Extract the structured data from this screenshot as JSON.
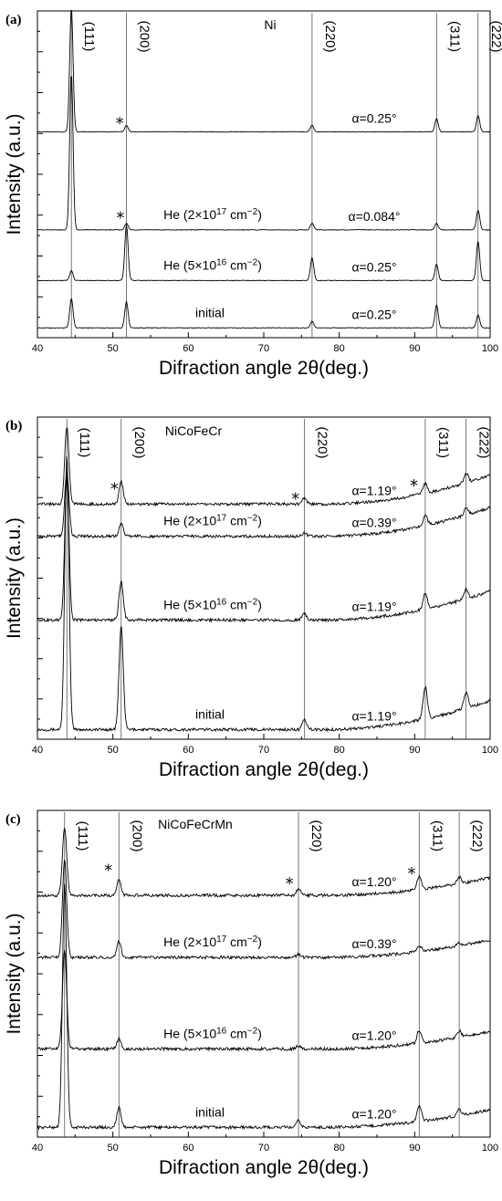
{
  "chart_data": [
    {
      "type": "line",
      "panel_label": "(a)",
      "material": "Ni",
      "xlabel": "Difraction angle 2θ(deg.)",
      "ylabel": "Intensity (a.u.)",
      "xlim": [
        40,
        100
      ],
      "x_ticks": [
        "40",
        "50",
        "60",
        "70",
        "80",
        "90",
        "100"
      ],
      "peak_labels": [
        {
          "text": "(111)",
          "x": 44.5
        },
        {
          "text": "(200)",
          "x": 51.8
        },
        {
          "text": "(220)",
          "x": 76.4
        },
        {
          "text": "(311)",
          "x": 92.9
        },
        {
          "text": "(222)",
          "x": 98.4
        }
      ],
      "series": [
        {
          "label": "initial",
          "angle": "α=0.25°",
          "baseline": 0.03,
          "peaks": [
            [
              44.5,
              0.09
            ],
            [
              51.8,
              0.08
            ],
            [
              76.4,
              0.02
            ],
            [
              92.9,
              0.07
            ],
            [
              98.4,
              0.04
            ]
          ]
        },
        {
          "label": "He (5×10<sup>16</sup> cm<sup>−2</sup>)",
          "angle": "α=0.25°",
          "baseline": 0.175,
          "peaks": [
            [
              44.5,
              0.03
            ],
            [
              51.8,
              0.17
            ],
            [
              76.4,
              0.07
            ],
            [
              92.9,
              0.05
            ],
            [
              98.4,
              0.12
            ]
          ]
        },
        {
          "label": "He (2×10<sup>17</sup> cm<sup>−2</sup>)",
          "angle": "α=0.084°",
          "baseline": 0.33,
          "peaks": [
            [
              44.5,
              0.48
            ],
            [
              51.8,
              0.02
            ],
            [
              76.4,
              0.02
            ],
            [
              92.9,
              0.02
            ],
            [
              98.4,
              0.06
            ]
          ]
        },
        {
          "label": "",
          "angle": "α=0.25°",
          "baseline": 0.63,
          "peaks": [
            [
              44.5,
              0.38
            ],
            [
              51.8,
              0.02
            ],
            [
              76.4,
              0.02
            ],
            [
              92.9,
              0.04
            ],
            [
              98.4,
              0.05
            ]
          ]
        }
      ],
      "vlines": [
        44.5,
        51.8,
        76.4,
        92.9,
        98.4
      ],
      "stars": [
        {
          "x": 50.9,
          "y": 0.64
        },
        {
          "x": 51.0,
          "y": 0.35
        }
      ]
    },
    {
      "type": "line",
      "panel_label": "(b)",
      "material": "NiCoFeCr",
      "xlabel": "Difraction angle 2θ(deg.)",
      "ylabel": "Intensity (a.u.)",
      "xlim": [
        40,
        100
      ],
      "x_ticks": [
        "40",
        "50",
        "60",
        "70",
        "80",
        "90",
        "100"
      ],
      "peak_labels": [
        {
          "text": "(111)",
          "x": 43.9
        },
        {
          "text": "(200)",
          "x": 51.1
        },
        {
          "text": "(220)",
          "x": 75.4
        },
        {
          "text": "(311)",
          "x": 91.4
        },
        {
          "text": "(222)",
          "x": 96.8
        }
      ],
      "series": [
        {
          "label": "initial",
          "angle": "α=1.19°",
          "baseline": 0.03,
          "peaks": [
            [
              43.9,
              0.85
            ],
            [
              51.1,
              0.32
            ],
            [
              75.4,
              0.03
            ],
            [
              91.4,
              0.1
            ],
            [
              96.8,
              0.05
            ]
          ]
        },
        {
          "label": "He (5×10<sup>16</sup> cm<sup>−2</sup>)",
          "angle": "α=1.19°",
          "baseline": 0.37,
          "peaks": [
            [
              43.9,
              0.45
            ],
            [
              51.1,
              0.12
            ],
            [
              75.4,
              0.02
            ],
            [
              91.4,
              0.05
            ],
            [
              96.8,
              0.03
            ]
          ]
        },
        {
          "label": "He (2×10<sup>17</sup> cm<sup>−2</sup>)",
          "angle": "α=0.39°",
          "baseline": 0.63,
          "peaks": [
            [
              43.9,
              0.2
            ],
            [
              51.1,
              0.04
            ],
            [
              75.4,
              0.01
            ],
            [
              91.4,
              0.03
            ],
            [
              96.8,
              0.02
            ]
          ]
        },
        {
          "label": "",
          "angle": "α=1.19°",
          "baseline": 0.73,
          "peaks": [
            [
              43.9,
              0.24
            ],
            [
              51.1,
              0.07
            ],
            [
              75.4,
              0.02
            ],
            [
              91.4,
              0.03
            ],
            [
              96.8,
              0.03
            ]
          ]
        }
      ],
      "vlines": [
        43.9,
        51.1,
        75.4,
        91.4,
        96.8
      ],
      "stars": [
        {
          "x": 50.2,
          "y": 0.76
        },
        {
          "x": 74.2,
          "y": 0.73
        },
        {
          "x": 89.9,
          "y": 0.77
        }
      ]
    },
    {
      "type": "line",
      "panel_label": "(c)",
      "material": "NiCoFeCrMn",
      "xlabel": "Difraction angle 2θ(deg.)",
      "ylabel": "Intensity (a.u.)",
      "xlim": [
        40,
        100
      ],
      "x_ticks": [
        "40",
        "50",
        "60",
        "70",
        "80",
        "90",
        "100"
      ],
      "peak_labels": [
        {
          "text": "(111)",
          "x": 43.6
        },
        {
          "text": "(200)",
          "x": 50.8
        },
        {
          "text": "(220)",
          "x": 74.6
        },
        {
          "text": "(311)",
          "x": 90.6
        },
        {
          "text": "(222)",
          "x": 95.9
        }
      ],
      "series": [
        {
          "label": "initial",
          "angle": "α=1.20°",
          "baseline": 0.03,
          "peaks": [
            [
              43.6,
              0.75
            ],
            [
              50.8,
              0.06
            ],
            [
              74.6,
              0.02
            ],
            [
              90.6,
              0.05
            ],
            [
              95.9,
              0.02
            ]
          ]
        },
        {
          "label": "He (5×10<sup>16</sup> cm<sup>−2</sup>)",
          "angle": "α=1.20°",
          "baseline": 0.27,
          "peaks": [
            [
              43.6,
              0.3
            ],
            [
              50.8,
              0.03
            ],
            [
              74.6,
              0.01
            ],
            [
              90.6,
              0.04
            ],
            [
              95.9,
              0.02
            ]
          ]
        },
        {
          "label": "He (2×10<sup>17</sup> cm<sup>−2</sup>)",
          "angle": "α=0.39°",
          "baseline": 0.55,
          "peaks": [
            [
              43.6,
              0.3
            ],
            [
              50.8,
              0.05
            ],
            [
              74.6,
              0.01
            ],
            [
              90.6,
              0.02
            ],
            [
              95.9,
              0.01
            ]
          ]
        },
        {
          "label": "",
          "angle": "α=1.20°",
          "baseline": 0.74,
          "peaks": [
            [
              43.6,
              0.21
            ],
            [
              50.8,
              0.05
            ],
            [
              74.6,
              0.02
            ],
            [
              90.6,
              0.04
            ],
            [
              95.9,
              0.02
            ]
          ]
        }
      ],
      "vlines": [
        43.6,
        50.8,
        74.6,
        90.6,
        95.9
      ],
      "stars": [
        {
          "x": 49.4,
          "y": 0.8
        },
        {
          "x": 73.4,
          "y": 0.76
        },
        {
          "x": 89.6,
          "y": 0.79
        }
      ]
    }
  ]
}
